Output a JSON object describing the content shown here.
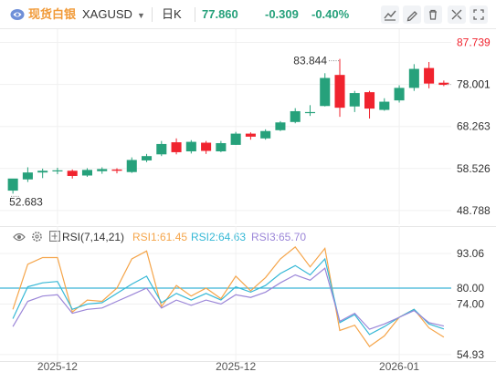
{
  "header": {
    "brand": "现货白银",
    "symbol": "XAGUSD",
    "period": "日K",
    "price": "77.860",
    "change": "-0.309",
    "change_pct": "-0.40%",
    "icons": [
      "logo-icon",
      "chevron-down-icon",
      "line-chart-icon",
      "pen-icon",
      "delete-icon",
      "layout-icon",
      "expand-icon"
    ]
  },
  "colors": {
    "up": "#26a17b",
    "down": "#f0232e",
    "grid": "#f0f0f0",
    "rsi1": "#f5a54a",
    "rsi2": "#35b8d6",
    "rsi3": "#9b86d8",
    "level": "#3bb5d6"
  },
  "chart_data": [
    {
      "type": "candlestick",
      "y_ticks": [
        "87.739",
        "78.001",
        "68.263",
        "58.526",
        "48.788"
      ],
      "y_tick_values": [
        87.739,
        78.001,
        68.263,
        58.526,
        48.788
      ],
      "ylim": [
        45.6,
        90.8
      ],
      "last_price_label": "78.001",
      "max_label": "83.844",
      "min_label": "52.683",
      "x_ticks": [
        "2025-12",
        "2025-12",
        "2026-01"
      ],
      "x_tick_index": [
        3,
        15,
        26
      ],
      "candles": [
        {
          "o": 53.4,
          "h": 55.9,
          "l": 52.7,
          "c": 56.2
        },
        {
          "o": 56.0,
          "h": 58.8,
          "l": 55.4,
          "c": 57.6
        },
        {
          "o": 57.6,
          "h": 58.5,
          "l": 56.3,
          "c": 58.0
        },
        {
          "o": 57.9,
          "h": 58.7,
          "l": 57.2,
          "c": 58.1
        },
        {
          "o": 58.0,
          "h": 58.3,
          "l": 56.2,
          "c": 56.8
        },
        {
          "o": 56.9,
          "h": 58.6,
          "l": 56.6,
          "c": 58.2
        },
        {
          "o": 57.9,
          "h": 58.8,
          "l": 57.3,
          "c": 58.4
        },
        {
          "o": 58.3,
          "h": 58.6,
          "l": 57.4,
          "c": 58.0
        },
        {
          "o": 57.7,
          "h": 61.1,
          "l": 57.5,
          "c": 60.5
        },
        {
          "o": 60.4,
          "h": 61.9,
          "l": 60.0,
          "c": 61.4
        },
        {
          "o": 61.8,
          "h": 64.9,
          "l": 61.4,
          "c": 64.2
        },
        {
          "o": 64.6,
          "h": 65.5,
          "l": 61.8,
          "c": 62.3
        },
        {
          "o": 62.5,
          "h": 65.1,
          "l": 62.0,
          "c": 64.7
        },
        {
          "o": 64.5,
          "h": 64.9,
          "l": 61.9,
          "c": 62.6
        },
        {
          "o": 62.5,
          "h": 64.9,
          "l": 62.3,
          "c": 64.4
        },
        {
          "o": 64.0,
          "h": 67.0,
          "l": 64.0,
          "c": 66.6
        },
        {
          "o": 66.6,
          "h": 66.9,
          "l": 65.2,
          "c": 65.9
        },
        {
          "o": 65.5,
          "h": 67.6,
          "l": 65.2,
          "c": 67.2
        },
        {
          "o": 67.4,
          "h": 69.5,
          "l": 67.2,
          "c": 69.2
        },
        {
          "o": 69.3,
          "h": 72.5,
          "l": 69.0,
          "c": 71.8
        },
        {
          "o": 71.4,
          "h": 73.2,
          "l": 70.7,
          "c": 71.6
        },
        {
          "o": 73.0,
          "h": 80.6,
          "l": 72.9,
          "c": 79.5
        },
        {
          "o": 80.2,
          "h": 83.9,
          "l": 70.5,
          "c": 72.6
        },
        {
          "o": 72.9,
          "h": 76.5,
          "l": 71.6,
          "c": 76.0
        },
        {
          "o": 76.2,
          "h": 76.5,
          "l": 70.1,
          "c": 72.4
        },
        {
          "o": 72.1,
          "h": 74.8,
          "l": 71.9,
          "c": 74.0
        },
        {
          "o": 74.3,
          "h": 77.8,
          "l": 73.8,
          "c": 77.2
        },
        {
          "o": 77.2,
          "h": 82.7,
          "l": 76.5,
          "c": 81.6
        },
        {
          "o": 81.8,
          "h": 83.2,
          "l": 77.1,
          "c": 78.2
        },
        {
          "o": 78.4,
          "h": 78.9,
          "l": 77.6,
          "c": 77.9
        }
      ]
    },
    {
      "type": "line",
      "name": "RSI(7,14,21)",
      "legend": [
        "RSI1:61.45",
        "RSI2:64.63",
        "RSI3:65.70"
      ],
      "y_ticks": [
        "93.06",
        "80.00",
        "74.00",
        "54.93"
      ],
      "y_tick_values": [
        93.06,
        80.0,
        74.0,
        54.93
      ],
      "level": 80.0,
      "ylim": [
        52.5,
        96.5
      ],
      "series": [
        {
          "name": "RSI1",
          "values": [
            72,
            89,
            91.5,
            91.5,
            71,
            75.5,
            75,
            80,
            91,
            94,
            73,
            81,
            77,
            80,
            76,
            84.5,
            79,
            84,
            91,
            95.5,
            88,
            95,
            64,
            66,
            58,
            62,
            69,
            72,
            65,
            61.5
          ]
        },
        {
          "name": "RSI2",
          "values": [
            68.5,
            80.5,
            82,
            82.5,
            72,
            74,
            74.5,
            78,
            81.5,
            84.5,
            74.5,
            78,
            75.5,
            78,
            75.5,
            80.5,
            78.5,
            81,
            85.5,
            88.5,
            85,
            91,
            67,
            70,
            62.5,
            65.5,
            69,
            72,
            66.5,
            64.6
          ]
        },
        {
          "name": "RSI3",
          "values": [
            65.5,
            75,
            77,
            77.5,
            70.5,
            72,
            72.5,
            75,
            77.5,
            80,
            72.5,
            75.5,
            73.5,
            75.5,
            74,
            77.5,
            76.5,
            78.5,
            82,
            85,
            83,
            87.5,
            67.5,
            70.5,
            64.5,
            66.5,
            69,
            71.5,
            67,
            65.7
          ]
        }
      ]
    }
  ]
}
